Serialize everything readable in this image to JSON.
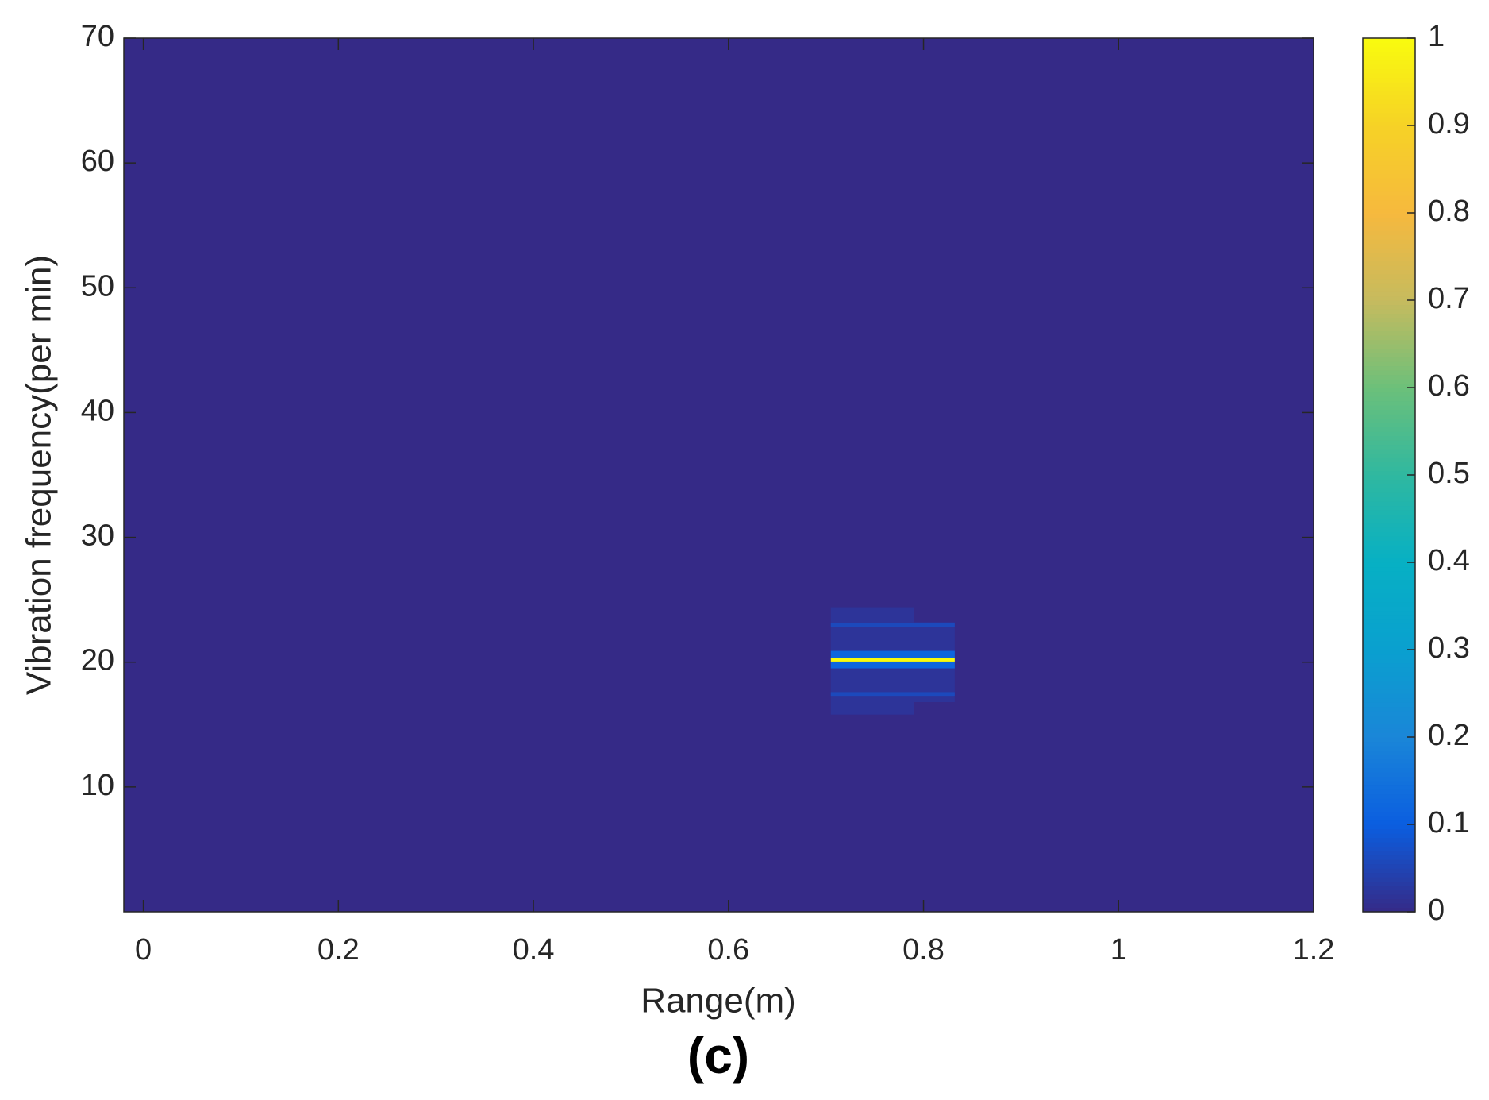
{
  "chart_data": {
    "type": "heatmap",
    "title": "(c)",
    "x_label": "Range(m)",
    "y_label": "Vibration frequency(per min)",
    "xlim": [
      -0.02,
      1.2
    ],
    "xticks": [
      0,
      0.2,
      0.4,
      0.6,
      0.8,
      1,
      1.2
    ],
    "ylim": [
      0,
      70
    ],
    "yticks": [
      10,
      20,
      30,
      40,
      50,
      60,
      70
    ],
    "clim": [
      0,
      1
    ],
    "cticks": [
      0,
      0.1,
      0.2,
      0.3,
      0.4,
      0.5,
      0.6,
      0.7,
      0.8,
      0.9,
      1
    ],
    "colormap": [
      "#352a87",
      "#0b5ee0",
      "#1a86d8",
      "#0aa0cf",
      "#07b0c4",
      "#2fb8a0",
      "#6cc07a",
      "#c6bb5e",
      "#f6b93e",
      "#f6d226",
      "#f9fb0e"
    ],
    "cells": [
      {
        "x": [
          -0.02,
          1.2
        ],
        "y": [
          0,
          70
        ],
        "value": 0
      },
      {
        "x": [
          0.705,
          0.79
        ],
        "y": [
          15.8,
          24.4
        ],
        "value": 0.02
      },
      {
        "x": [
          0.79,
          0.832
        ],
        "y": [
          16.8,
          23.2
        ],
        "value": 0.02
      },
      {
        "x": [
          0.705,
          0.832
        ],
        "y": [
          22.8,
          23.1
        ],
        "value": 0.06
      },
      {
        "x": [
          0.705,
          0.832
        ],
        "y": [
          17.3,
          17.6
        ],
        "value": 0.06
      },
      {
        "x": [
          0.705,
          0.832
        ],
        "y": [
          19.5,
          20.05
        ],
        "value": 0.12
      },
      {
        "x": [
          0.705,
          0.832
        ],
        "y": [
          20.35,
          20.9
        ],
        "value": 0.12
      },
      {
        "x": [
          0.705,
          0.832
        ],
        "y": [
          20.05,
          20.35
        ],
        "value": 1
      }
    ]
  }
}
